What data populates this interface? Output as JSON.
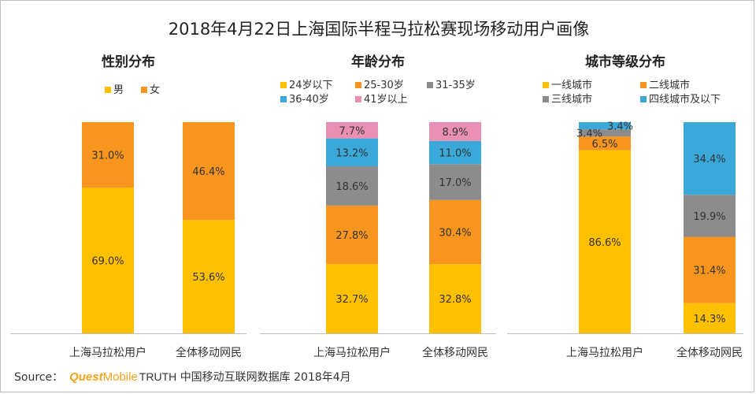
{
  "title": "2018年4月22日上海国际半程马拉松赛现场移动用户画像",
  "footer": {
    "source_label": "Source：",
    "brand_quest": "Quest",
    "brand_mobile": "Mobile",
    "brand_truth": "TRUTH",
    "text": "中国移动互联网数据库 2018年4月"
  },
  "chart_data": [
    {
      "type": "bar",
      "stacked": true,
      "normalized": true,
      "title": "性别分布",
      "categories": [
        "上海马拉松用户",
        "全体移动网民"
      ],
      "series": [
        {
          "name": "男",
          "color": "#ffc000",
          "values": [
            69.0,
            53.6
          ]
        },
        {
          "name": "女",
          "color": "#f7951f",
          "values": [
            31.0,
            46.4
          ]
        }
      ],
      "ylim": [
        0,
        100
      ],
      "value_format": "%",
      "legend_position": "top"
    },
    {
      "type": "bar",
      "stacked": true,
      "normalized": true,
      "title": "年龄分布",
      "categories": [
        "上海马拉松用户",
        "全体移动网民"
      ],
      "series": [
        {
          "name": "24岁以下",
          "color": "#ffc000",
          "values": [
            32.7,
            32.8
          ]
        },
        {
          "name": "25-30岁",
          "color": "#f7951f",
          "values": [
            27.8,
            30.4
          ]
        },
        {
          "name": "31-35岁",
          "color": "#8c8c8c",
          "values": [
            18.6,
            17.0
          ]
        },
        {
          "name": "36-40岁",
          "color": "#3aa9da",
          "values": [
            13.2,
            11.0
          ]
        },
        {
          "name": "41岁以上",
          "color": "#e98fb4",
          "values": [
            7.7,
            8.9
          ]
        }
      ],
      "ylim": [
        0,
        100
      ],
      "value_format": "%",
      "legend_position": "top"
    },
    {
      "type": "bar",
      "stacked": true,
      "normalized": true,
      "title": "城市等级分布",
      "categories": [
        "上海马拉松用户",
        "全体移动网民"
      ],
      "series": [
        {
          "name": "一线城市",
          "color": "#ffc000",
          "values": [
            86.6,
            14.3
          ]
        },
        {
          "name": "二线城市",
          "color": "#f7951f",
          "values": [
            6.5,
            31.4
          ]
        },
        {
          "name": "三线城市",
          "color": "#8c8c8c",
          "values": [
            3.4,
            19.9
          ]
        },
        {
          "name": "四线城市及以下",
          "color": "#3aa9da",
          "values": [
            3.4,
            34.4
          ]
        }
      ],
      "ylim": [
        0,
        100
      ],
      "value_format": "%",
      "legend_position": "top"
    }
  ]
}
